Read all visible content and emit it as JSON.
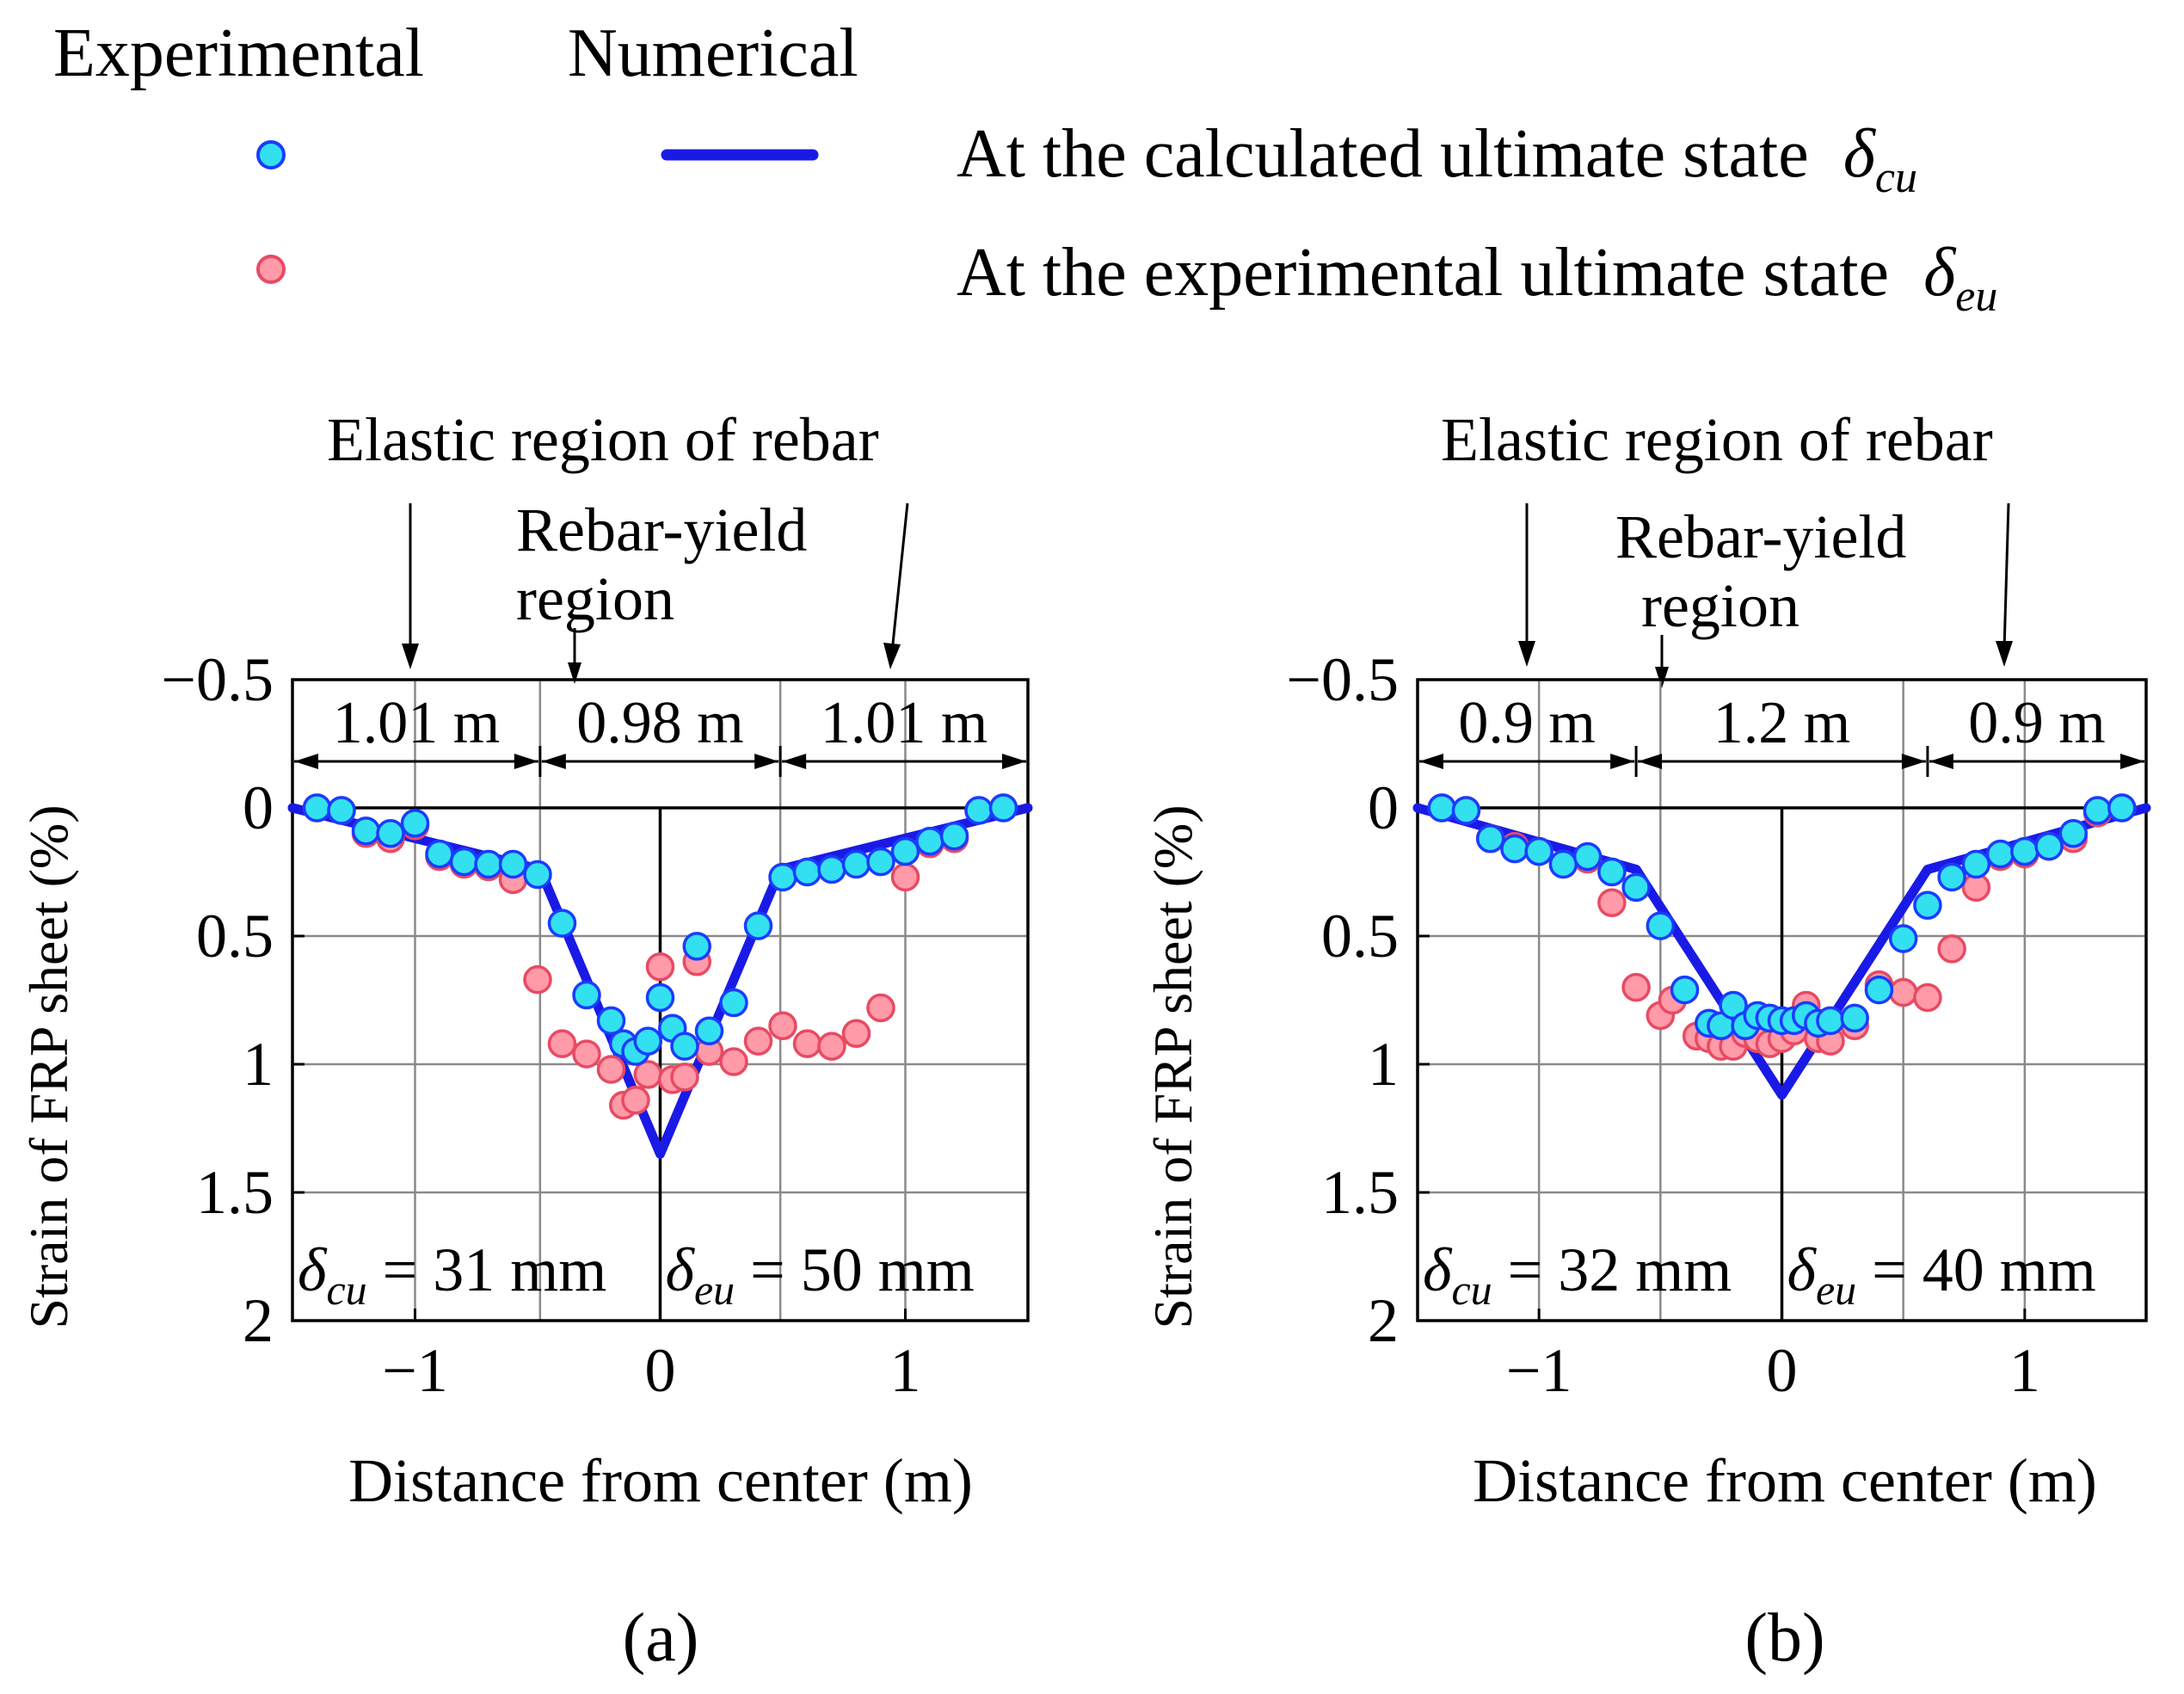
{
  "legend": {
    "experimental_header": "Experimental",
    "numerical_header": "Numerical",
    "entries": [
      {
        "label": "At the calculated ultimate state",
        "symbol": "δ",
        "subscript": "cu",
        "marker_color": "#33e0f0",
        "marker_edge": "#1a3cff"
      },
      {
        "label": "At the experimental ultimate state",
        "symbol": "δ",
        "subscript": "eu",
        "marker_color": "#ff9aa8",
        "marker_edge": "#e84a62"
      }
    ],
    "line_color": "#1a1ae6"
  },
  "chart_data": [
    {
      "panel": "(a)",
      "type": "scatter",
      "xlabel": "Distance from center (m)",
      "ylabel": "Strain of FRP sheet (%)",
      "xlim": [
        -1.5,
        1.5
      ],
      "ylim": [
        -0.5,
        2
      ],
      "y_inverted": true,
      "xticks": [
        -1,
        0,
        1
      ],
      "xtick_labels": [
        "−1",
        "0",
        "1"
      ],
      "yticks": [
        -0.5,
        0,
        0.5,
        1,
        1.5,
        2
      ],
      "ytick_labels": [
        "−0.5",
        "0",
        "0.5",
        "1",
        "1.5",
        "2"
      ],
      "vgrid": [
        -1,
        -0.49,
        0.49,
        1
      ],
      "hgrid": [
        0.5,
        1,
        1.5
      ],
      "annotation_top": "Elastic region of rebar",
      "annotation_mid_line1": "Rebar-yield",
      "annotation_mid_line2": "region",
      "segments": [
        {
          "from": -1.5,
          "to": -0.49,
          "label": "1.01 m"
        },
        {
          "from": -0.49,
          "to": 0.49,
          "label": "0.98 m"
        },
        {
          "from": 0.49,
          "to": 1.5,
          "label": "1.01 m"
        }
      ],
      "disp_left": {
        "symbol": "δ",
        "subscript": "cu",
        "text": " = 31 mm"
      },
      "disp_right": {
        "symbol": "δ",
        "subscript": "eu",
        "text": " = 50 mm"
      },
      "series": [
        {
          "name": "Numerical",
          "kind": "line",
          "x": [
            -1.5,
            -0.49,
            0,
            0.49,
            1.5
          ],
          "y": [
            0,
            0.24,
            1.35,
            0.24,
            0
          ]
        },
        {
          "name": "Experimental",
          "kind": "markers",
          "state": "eu",
          "x": [
            -1.4,
            -1.3,
            -1.2,
            -1.1,
            -1.0,
            -0.9,
            -0.8,
            -0.7,
            -0.6,
            -0.5,
            -0.4,
            -0.3,
            -0.2,
            -0.15,
            -0.1,
            -0.05,
            0,
            0.05,
            0.1,
            0.15,
            0.2,
            0.3,
            0.4,
            0.5,
            0.6,
            0.7,
            0.8,
            0.9,
            1.0,
            1.1,
            1.2,
            1.3,
            1.4
          ],
          "y": [
            0.0,
            0.01,
            0.1,
            0.12,
            0.07,
            0.19,
            0.22,
            0.23,
            0.28,
            0.67,
            0.92,
            0.96,
            1.02,
            1.16,
            1.14,
            1.04,
            0.62,
            1.06,
            1.05,
            0.6,
            0.95,
            0.99,
            0.91,
            0.85,
            0.92,
            0.93,
            0.88,
            0.78,
            0.27,
            0.14,
            0.12,
            0.01,
            0.0
          ]
        },
        {
          "name": "Experimental",
          "kind": "markers",
          "state": "cu",
          "x": [
            -1.4,
            -1.3,
            -1.2,
            -1.1,
            -1.0,
            -0.9,
            -0.8,
            -0.7,
            -0.6,
            -0.5,
            -0.4,
            -0.3,
            -0.2,
            -0.15,
            -0.1,
            -0.05,
            0,
            0.05,
            0.1,
            0.15,
            0.2,
            0.3,
            0.4,
            0.5,
            0.6,
            0.7,
            0.8,
            0.9,
            1.0,
            1.1,
            1.2,
            1.3,
            1.4
          ],
          "y": [
            0.0,
            0.01,
            0.09,
            0.1,
            0.06,
            0.18,
            0.21,
            0.22,
            0.22,
            0.26,
            0.45,
            0.73,
            0.83,
            0.92,
            0.95,
            0.91,
            0.74,
            0.86,
            0.93,
            0.54,
            0.87,
            0.76,
            0.46,
            0.27,
            0.25,
            0.24,
            0.22,
            0.21,
            0.17,
            0.13,
            0.11,
            0.01,
            0.0
          ]
        }
      ]
    },
    {
      "panel": "(b)",
      "type": "scatter",
      "xlabel": "Distance from center (m)",
      "ylabel": "Strain of FRP sheet (%)",
      "xlim": [
        -1.5,
        1.5
      ],
      "ylim": [
        -0.5,
        2
      ],
      "y_inverted": true,
      "xticks": [
        -1,
        0,
        1
      ],
      "xtick_labels": [
        "−1",
        "0",
        "1"
      ],
      "yticks": [
        -0.5,
        0,
        0.5,
        1,
        1.5,
        2
      ],
      "ytick_labels": [
        "−0.5",
        "0",
        "0.5",
        "1",
        "1.5",
        "2"
      ],
      "vgrid": [
        -1,
        -0.5,
        0.5,
        1
      ],
      "hgrid": [
        0.5,
        1,
        1.5
      ],
      "annotation_top": "Elastic region of rebar",
      "annotation_mid_line1": "Rebar-yield",
      "annotation_mid_line2": "region",
      "segments": [
        {
          "from": -1.5,
          "to": -0.6,
          "label": "0.9 m"
        },
        {
          "from": -0.6,
          "to": 0.6,
          "label": "1.2 m"
        },
        {
          "from": 0.6,
          "to": 1.5,
          "label": "0.9 m"
        }
      ],
      "disp_left": {
        "symbol": "δ",
        "subscript": "cu",
        "text": " = 32 mm"
      },
      "disp_right": {
        "symbol": "δ",
        "subscript": "eu",
        "text": " = 40 mm"
      },
      "series": [
        {
          "name": "Numerical",
          "kind": "line",
          "x": [
            -1.5,
            -0.6,
            0,
            0.6,
            1.5
          ],
          "y": [
            0,
            0.24,
            1.12,
            0.24,
            0
          ]
        },
        {
          "name": "Experimental",
          "kind": "markers",
          "state": "eu",
          "x": [
            -1.4,
            -1.3,
            -1.2,
            -1.1,
            -1.0,
            -0.9,
            -0.8,
            -0.7,
            -0.6,
            -0.5,
            -0.45,
            -0.35,
            -0.3,
            -0.25,
            -0.2,
            -0.15,
            -0.1,
            -0.05,
            0,
            0.05,
            0.1,
            0.15,
            0.2,
            0.3,
            0.4,
            0.5,
            0.6,
            0.7,
            0.8,
            0.9,
            1.0,
            1.1,
            1.2,
            1.3,
            1.4
          ],
          "y": [
            0.0,
            0.01,
            0.12,
            0.15,
            0.17,
            0.22,
            0.2,
            0.37,
            0.7,
            0.81,
            0.75,
            0.89,
            0.9,
            0.93,
            0.93,
            0.88,
            0.9,
            0.92,
            0.9,
            0.87,
            0.77,
            0.9,
            0.91,
            0.85,
            0.69,
            0.72,
            0.74,
            0.55,
            0.31,
            0.19,
            0.18,
            0.15,
            0.12,
            0.02,
            0.0
          ]
        },
        {
          "name": "Experimental",
          "kind": "markers",
          "state": "cu",
          "x": [
            -1.4,
            -1.3,
            -1.2,
            -1.1,
            -1.0,
            -0.9,
            -0.8,
            -0.7,
            -0.6,
            -0.5,
            -0.4,
            -0.3,
            -0.25,
            -0.2,
            -0.15,
            -0.1,
            -0.05,
            0,
            0.05,
            0.1,
            0.15,
            0.2,
            0.3,
            0.4,
            0.5,
            0.6,
            0.7,
            0.8,
            0.9,
            1.0,
            1.1,
            1.2,
            1.3,
            1.4
          ],
          "y": [
            0.0,
            0.01,
            0.12,
            0.16,
            0.17,
            0.22,
            0.19,
            0.25,
            0.31,
            0.46,
            0.71,
            0.84,
            0.85,
            0.77,
            0.85,
            0.81,
            0.82,
            0.83,
            0.83,
            0.81,
            0.84,
            0.83,
            0.82,
            0.71,
            0.51,
            0.38,
            0.27,
            0.22,
            0.18,
            0.17,
            0.15,
            0.1,
            0.01,
            0.0
          ]
        }
      ]
    }
  ]
}
